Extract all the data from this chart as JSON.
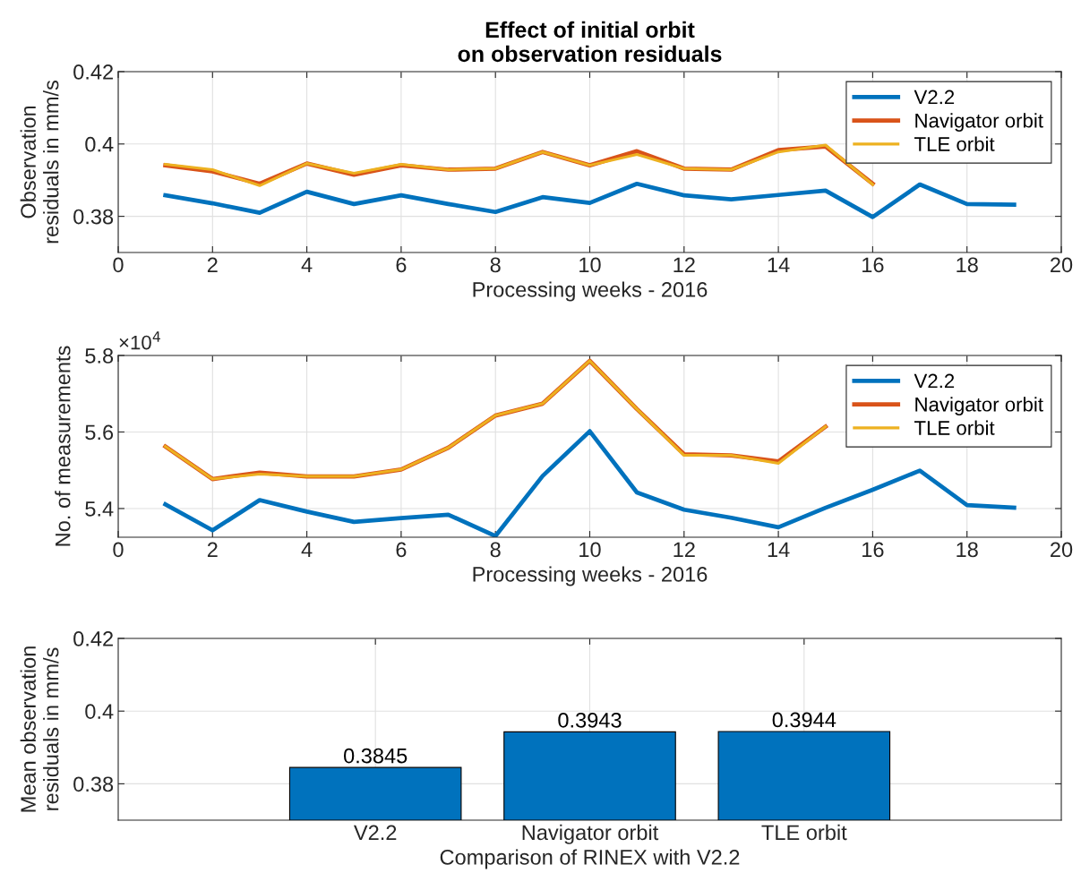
{
  "chart_data": [
    {
      "type": "line",
      "title": "Effect of initial orbit\non observation residuals",
      "xlabel": "Processing weeks - 2016",
      "ylabel": "Observation\nresiduals in mm/s",
      "x": [
        1,
        2,
        3,
        4,
        5,
        6,
        7,
        8,
        9,
        10,
        11,
        12,
        13,
        14,
        15,
        16,
        17,
        18,
        19
      ],
      "series": [
        {
          "name": "V2.2",
          "color": "#0072bd",
          "values": [
            0.3858,
            0.3836,
            0.381,
            0.3868,
            0.3834,
            0.3858,
            0.3834,
            0.3812,
            0.3853,
            0.3837,
            0.389,
            0.3858,
            0.3847,
            0.3859,
            0.3871,
            0.3798,
            0.3888,
            0.3834,
            0.3832
          ]
        },
        {
          "name": "Navigator orbit",
          "color": "#d95319",
          "values": [
            0.3941,
            0.3924,
            0.389,
            0.3946,
            0.3915,
            0.3941,
            0.3929,
            0.3932,
            0.3978,
            0.3941,
            0.398,
            0.3932,
            0.3929,
            0.3983,
            0.3993,
            0.389,
            null,
            null,
            null
          ]
        },
        {
          "name": "TLE orbit",
          "color": "#edb120",
          "values": [
            0.3944,
            0.3929,
            0.3885,
            0.3946,
            0.3919,
            0.3944,
            0.3929,
            0.3932,
            0.3978,
            0.3941,
            0.3971,
            0.3932,
            0.3929,
            0.3978,
            0.3997,
            0.3888,
            null,
            null,
            null
          ]
        }
      ],
      "xlim": [
        0,
        20
      ],
      "xticks": [
        0,
        2,
        4,
        6,
        8,
        10,
        12,
        14,
        16,
        18,
        20
      ],
      "ylim": [
        0.37,
        0.42
      ],
      "yticks": [
        0.38,
        {
          "value": 0.4,
          "label": "0.4"
        },
        0.42
      ],
      "grid": true,
      "legend": "top right"
    },
    {
      "type": "line",
      "xlabel": "Processing weeks - 2016",
      "ylabel": "No. of measurements",
      "annotations": [
        "×10$^{4}$"
      ],
      "x": [
        1,
        2,
        3,
        4,
        5,
        6,
        7,
        8,
        9,
        10,
        11,
        12,
        13,
        14,
        15,
        16,
        17,
        18,
        19
      ],
      "series": [
        {
          "name": "V2.2",
          "color": "#0072bd",
          "values": [
            5.411,
            5.343,
            5.422,
            5.392,
            5.365,
            5.375,
            5.384,
            5.328,
            5.485,
            5.602,
            5.442,
            5.397,
            5.376,
            5.351,
            5.402,
            5.449,
            5.499,
            5.409,
            5.402
          ]
        },
        {
          "name": "Navigator orbit",
          "color": "#d95319",
          "values": [
            5.562,
            5.477,
            5.494,
            5.484,
            5.484,
            5.502,
            5.559,
            5.643,
            5.674,
            5.786,
            5.66,
            5.542,
            5.539,
            5.523,
            5.614,
            null,
            null,
            null,
            null
          ]
        },
        {
          "name": "TLE orbit",
          "color": "#edb120",
          "values": [
            5.562,
            5.477,
            5.49,
            5.484,
            5.484,
            5.502,
            5.559,
            5.643,
            5.674,
            5.786,
            5.66,
            5.539,
            5.539,
            5.518,
            5.614,
            null,
            null,
            null,
            null
          ]
        }
      ],
      "xlim": [
        0,
        20
      ],
      "xticks": [
        0,
        2,
        4,
        6,
        8,
        10,
        12,
        14,
        16,
        18,
        20
      ],
      "ylim": [
        5.325,
        5.8
      ],
      "yticks": [
        5.4,
        5.6,
        5.8
      ],
      "grid": true,
      "legend": "top right"
    },
    {
      "type": "bar",
      "xlabel": "Comparison of RINEX with V2.2",
      "ylabel": "Mean observation\nresiduals in mm/s",
      "categories": [
        "V2.2",
        "Navigator orbit",
        "TLE orbit"
      ],
      "values": [
        0.3845,
        0.3943,
        0.3944
      ],
      "color": "#0072bd",
      "ylim": [
        0.37,
        0.42
      ],
      "yticks": [
        0.38,
        {
          "value": 0.4,
          "label": "0.4"
        },
        0.42
      ],
      "grid": true,
      "data_labels": true
    }
  ]
}
